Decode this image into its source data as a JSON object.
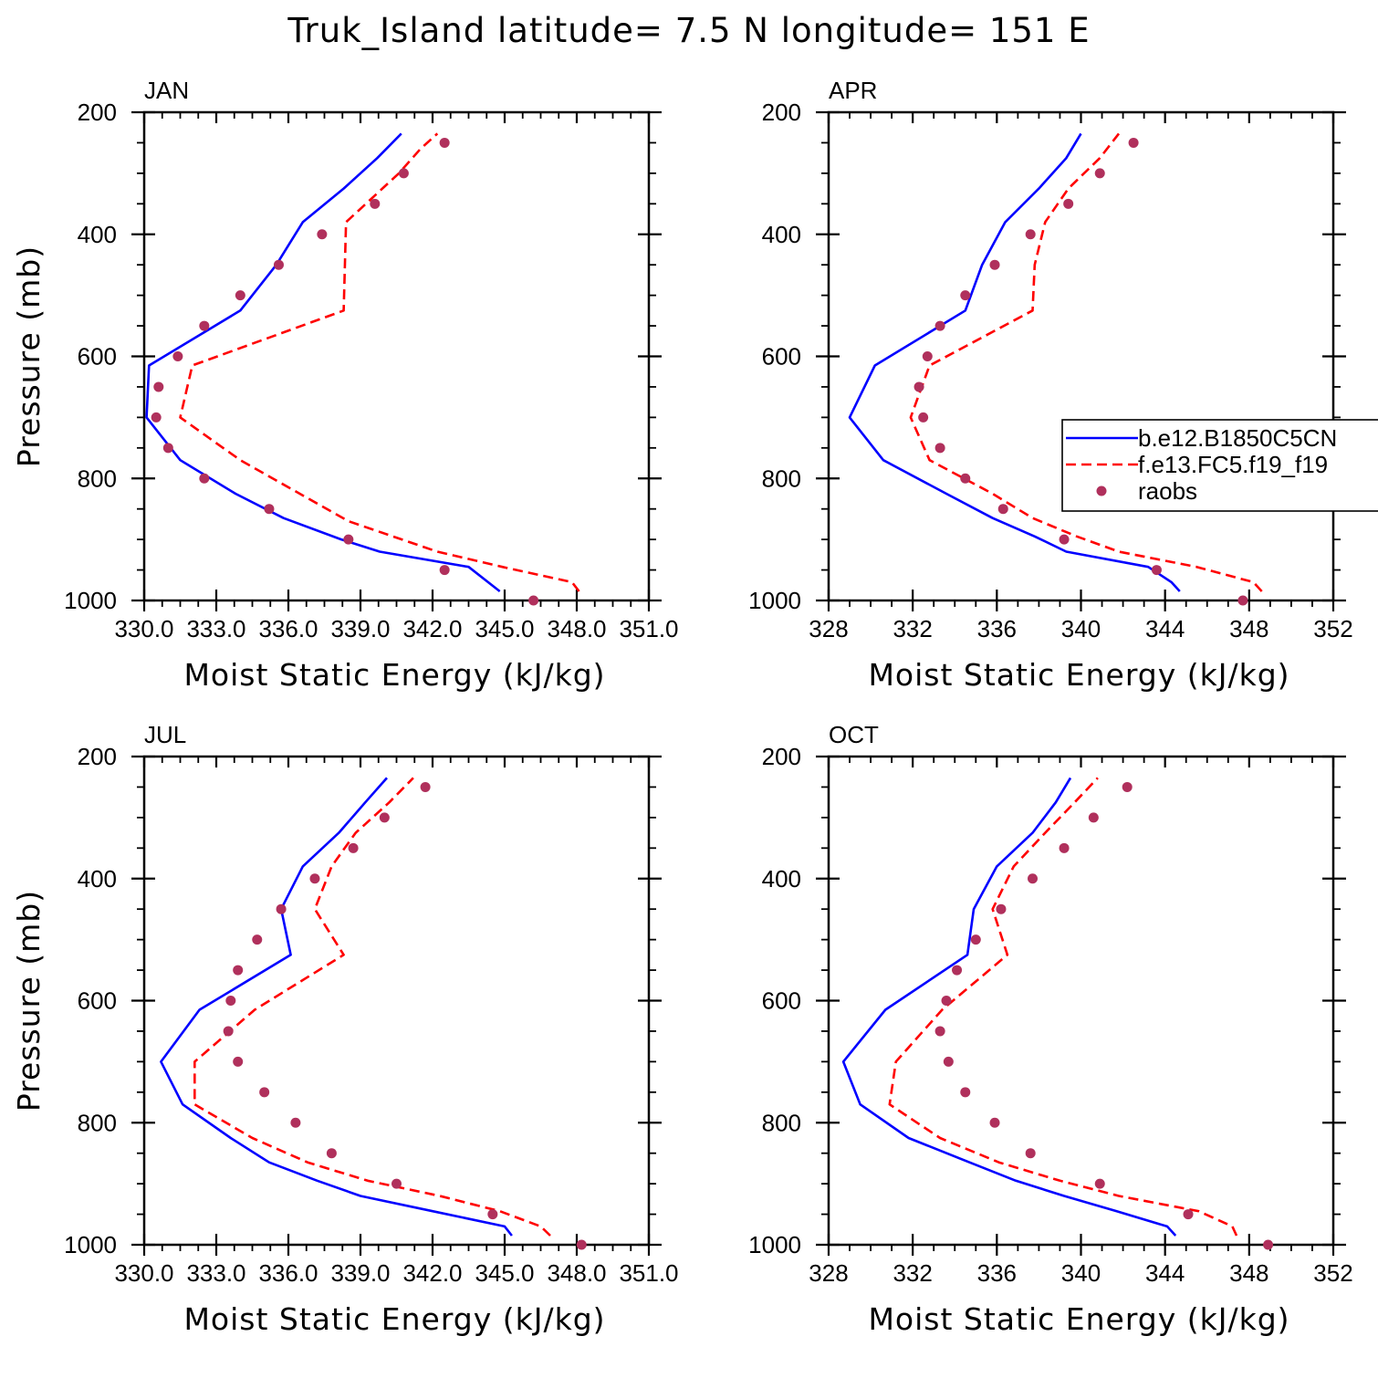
{
  "figure_title": "Truk_Island  latitude= 7.5 N longitude= 151 E",
  "colors": {
    "model_b": "#0000ff",
    "model_f": "#ff0000",
    "raobs": "#b0305c"
  },
  "legend": {
    "entries": [
      {
        "label": "b.e12.B1850C5CN",
        "style": "solid-line",
        "color": "#0000ff"
      },
      {
        "label": "f.e13.FC5.f19_f19",
        "style": "dashed-line",
        "color": "#ff0000"
      },
      {
        "label": "raobs",
        "style": "marker",
        "color": "#b0305c"
      }
    ]
  },
  "chart_data": [
    {
      "type": "line",
      "panel": "JAN",
      "xlabel": "Moist Static Energy (kJ/kg)",
      "ylabel": "Pressure (mb)",
      "xlim": [
        330.0,
        351.0
      ],
      "ylim": [
        1000,
        200
      ],
      "y_inverted": true,
      "xticks": [
        "330.0",
        "333.0",
        "336.0",
        "339.0",
        "342.0",
        "345.0",
        "348.0",
        "351.0"
      ],
      "yticks": [
        "200",
        "400",
        "600",
        "800",
        "1000"
      ],
      "series": [
        {
          "name": "b.e12.B1850C5CN",
          "style": "solid",
          "pressure": [
            985,
            945,
            920,
            900,
            865,
            825,
            770,
            700,
            615,
            525,
            450,
            380,
            325,
            275,
            235
          ],
          "mse": [
            344.8,
            343.5,
            339.8,
            338.2,
            335.8,
            333.8,
            331.5,
            330.1,
            330.2,
            334.0,
            335.5,
            336.6,
            338.3,
            339.7,
            340.7
          ]
        },
        {
          "name": "f.e13.FC5.f19_f19",
          "style": "dashed",
          "pressure": [
            985,
            970,
            945,
            920,
            870,
            770,
            700,
            615,
            525,
            380,
            300,
            260,
            235
          ],
          "mse": [
            348.1,
            347.8,
            344.9,
            342.2,
            338.5,
            334.0,
            331.5,
            332.0,
            338.3,
            338.4,
            340.6,
            341.5,
            342.2
          ]
        },
        {
          "name": "raobs",
          "style": "marker",
          "pressure": [
            250,
            300,
            350,
            400,
            450,
            500,
            550,
            600,
            650,
            700,
            750,
            800,
            850,
            900,
            950,
            1000
          ],
          "mse": [
            342.5,
            340.8,
            339.6,
            337.4,
            335.6,
            334.0,
            332.5,
            331.4,
            330.6,
            330.5,
            331.0,
            332.5,
            335.2,
            338.5,
            342.5,
            346.2
          ]
        }
      ]
    },
    {
      "type": "line",
      "panel": "APR",
      "xlabel": "Moist Static Energy (kJ/kg)",
      "ylabel": "",
      "xlim": [
        328,
        352
      ],
      "ylim": [
        1000,
        200
      ],
      "y_inverted": true,
      "xticks": [
        "328",
        "332",
        "336",
        "340",
        "344",
        "348",
        "352"
      ],
      "yticks": [
        "200",
        "400",
        "600",
        "800",
        "1000"
      ],
      "series": [
        {
          "name": "b.e12.B1850C5CN",
          "style": "solid",
          "pressure": [
            985,
            970,
            945,
            920,
            895,
            865,
            825,
            770,
            700,
            615,
            525,
            450,
            380,
            325,
            275,
            235
          ],
          "mse": [
            344.7,
            344.3,
            343.2,
            339.3,
            337.8,
            335.8,
            333.6,
            330.6,
            329.0,
            330.2,
            334.5,
            335.3,
            336.4,
            338.0,
            339.3,
            340.0
          ]
        },
        {
          "name": "f.e13.FC5.f19_f19",
          "style": "dashed",
          "pressure": [
            985,
            970,
            945,
            920,
            895,
            865,
            825,
            770,
            700,
            615,
            525,
            450,
            380,
            325,
            275,
            235
          ],
          "mse": [
            348.6,
            348.2,
            345.5,
            341.8,
            339.8,
            337.7,
            335.8,
            332.8,
            331.9,
            332.8,
            337.7,
            337.8,
            338.3,
            339.4,
            340.9,
            341.8
          ]
        },
        {
          "name": "raobs",
          "style": "marker",
          "pressure": [
            250,
            300,
            350,
            400,
            450,
            500,
            550,
            600,
            650,
            700,
            750,
            800,
            850,
            900,
            950,
            1000
          ],
          "mse": [
            342.5,
            340.9,
            339.4,
            337.6,
            335.9,
            334.5,
            333.3,
            332.7,
            332.3,
            332.5,
            333.3,
            334.5,
            336.3,
            339.2,
            343.6,
            347.7
          ]
        }
      ]
    },
    {
      "type": "line",
      "panel": "JUL",
      "xlabel": "Moist Static Energy (kJ/kg)",
      "ylabel": "Pressure (mb)",
      "xlim": [
        330.0,
        351.0
      ],
      "ylim": [
        1000,
        200
      ],
      "y_inverted": true,
      "xticks": [
        "330.0",
        "333.0",
        "336.0",
        "339.0",
        "342.0",
        "345.0",
        "348.0",
        "351.0"
      ],
      "yticks": [
        "200",
        "400",
        "600",
        "800",
        "1000"
      ],
      "series": [
        {
          "name": "b.e12.B1850C5CN",
          "style": "solid",
          "pressure": [
            985,
            970,
            945,
            920,
            895,
            865,
            825,
            770,
            700,
            615,
            525,
            450,
            380,
            325,
            275,
            235
          ],
          "mse": [
            345.3,
            345.0,
            342.0,
            339.0,
            337.2,
            335.2,
            333.6,
            331.6,
            330.7,
            332.3,
            336.1,
            335.7,
            336.6,
            338.1,
            339.2,
            340.1
          ]
        },
        {
          "name": "f.e13.FC5.f19_f19",
          "style": "dashed",
          "pressure": [
            985,
            970,
            945,
            920,
            895,
            865,
            825,
            770,
            700,
            615,
            525,
            450,
            380,
            325,
            275,
            235
          ],
          "mse": [
            346.9,
            346.5,
            344.8,
            342.3,
            339.3,
            336.8,
            334.5,
            332.1,
            332.1,
            334.6,
            338.3,
            337.1,
            337.8,
            338.8,
            340.2,
            341.2
          ]
        },
        {
          "name": "raobs",
          "style": "marker",
          "pressure": [
            250,
            300,
            350,
            400,
            450,
            500,
            550,
            600,
            650,
            700,
            750,
            800,
            850,
            900,
            950,
            1000
          ],
          "mse": [
            341.7,
            340.0,
            338.7,
            337.1,
            335.7,
            334.7,
            333.9,
            333.6,
            333.5,
            333.9,
            335.0,
            336.3,
            337.8,
            340.5,
            344.5,
            348.2
          ]
        }
      ]
    },
    {
      "type": "line",
      "panel": "OCT",
      "xlabel": "Moist Static Energy (kJ/kg)",
      "ylabel": "",
      "xlim": [
        328,
        352
      ],
      "ylim": [
        1000,
        200
      ],
      "y_inverted": true,
      "xticks": [
        "328",
        "332",
        "336",
        "340",
        "344",
        "348",
        "352"
      ],
      "yticks": [
        "200",
        "400",
        "600",
        "800",
        "1000"
      ],
      "series": [
        {
          "name": "b.e12.B1850C5CN",
          "style": "solid",
          "pressure": [
            985,
            970,
            945,
            920,
            895,
            865,
            825,
            770,
            700,
            615,
            525,
            450,
            380,
            325,
            275,
            235
          ],
          "mse": [
            344.5,
            344.1,
            341.7,
            339.2,
            336.9,
            334.7,
            331.8,
            329.5,
            328.7,
            330.7,
            334.6,
            334.9,
            336.0,
            337.7,
            338.8,
            339.5
          ]
        },
        {
          "name": "f.e13.FC5.f19_f19",
          "style": "dashed",
          "pressure": [
            985,
            970,
            945,
            920,
            895,
            865,
            825,
            770,
            700,
            615,
            525,
            450,
            380,
            325,
            275,
            235
          ],
          "mse": [
            347.4,
            347.2,
            345.6,
            341.8,
            339.0,
            336.1,
            333.3,
            330.9,
            331.2,
            333.4,
            336.5,
            335.8,
            336.8,
            338.3,
            339.7,
            340.8
          ]
        },
        {
          "name": "raobs",
          "style": "marker",
          "pressure": [
            250,
            300,
            350,
            400,
            450,
            500,
            550,
            600,
            650,
            700,
            750,
            800,
            850,
            900,
            950,
            1000
          ],
          "mse": [
            342.2,
            340.6,
            339.2,
            337.7,
            336.2,
            335.0,
            334.1,
            333.6,
            333.3,
            333.7,
            334.5,
            335.9,
            337.6,
            340.9,
            345.1,
            348.9
          ]
        }
      ]
    }
  ]
}
